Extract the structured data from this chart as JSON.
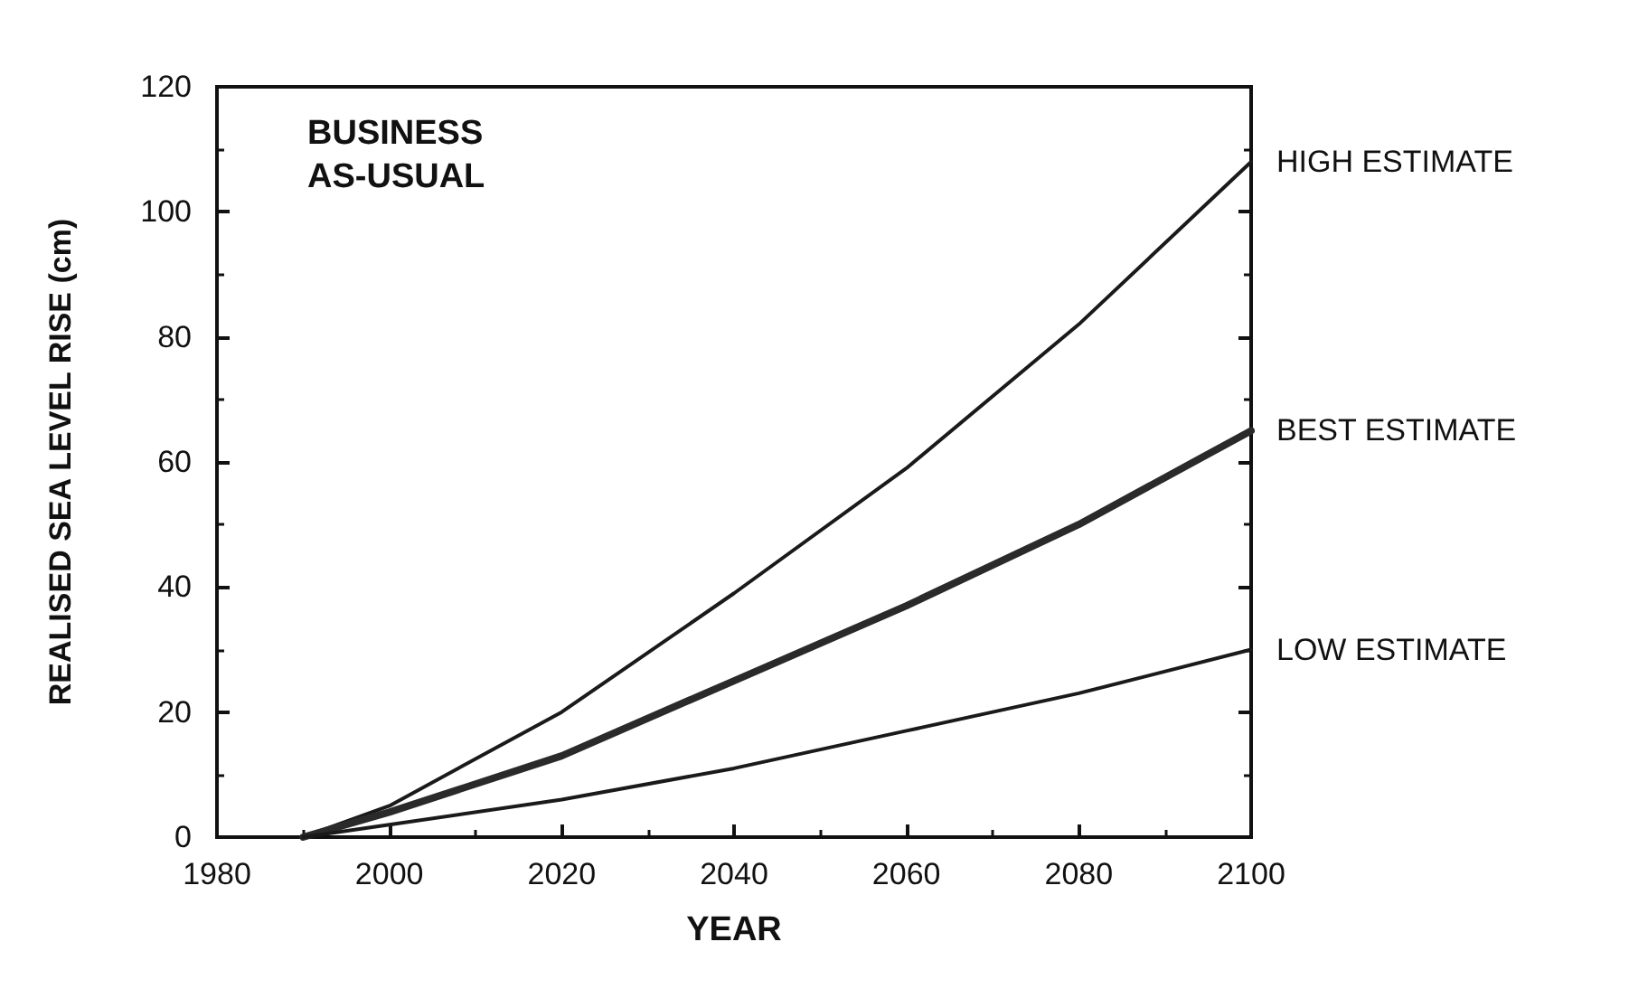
{
  "chart_data": {
    "type": "line",
    "xlabel": "YEAR",
    "ylabel": "REALISED SEA LEVEL RISE (cm)",
    "annotations": [
      "BUSINESS\nAS-USUAL"
    ],
    "x": [
      1990,
      2000,
      2020,
      2040,
      2060,
      2080,
      2100
    ],
    "series": [
      {
        "name": "HIGH ESTIMATE",
        "color": "#1a1a1a",
        "values": [
          0,
          5,
          20,
          39,
          59,
          82,
          108
        ]
      },
      {
        "name": "BEST ESTIMATE",
        "color": "#2a2a2a",
        "values": [
          0,
          4,
          13,
          25,
          37,
          50,
          65
        ]
      },
      {
        "name": "LOW ESTIMATE",
        "color": "#1a1a1a",
        "values": [
          0,
          2,
          6,
          11,
          17,
          23,
          30
        ]
      }
    ],
    "xlim": [
      1980,
      2100
    ],
    "xticks": [
      1980,
      2000,
      2020,
      2040,
      2060,
      2080,
      2100
    ],
    "ylim": [
      0,
      120
    ],
    "yticks": [
      0,
      20,
      40,
      60,
      80,
      100,
      120
    ],
    "grid": false,
    "legend": "right",
    "marker": "none",
    "line_style": "solid"
  }
}
